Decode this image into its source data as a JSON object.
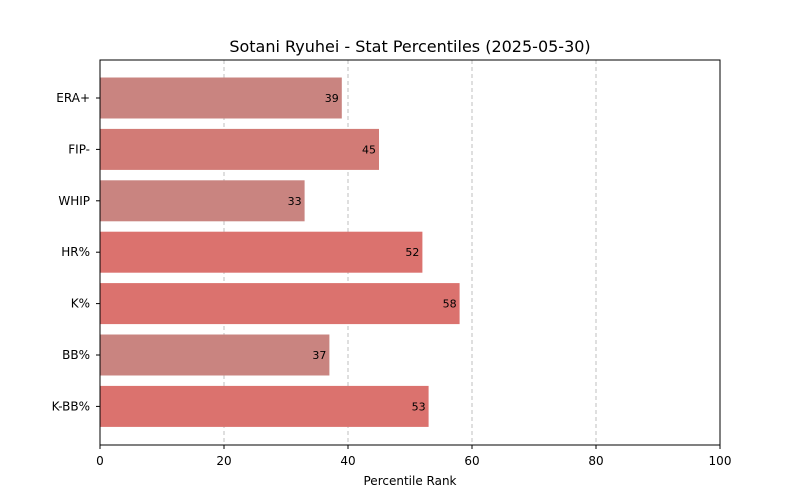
{
  "chart_data": {
    "type": "bar",
    "orientation": "horizontal",
    "title": "Sotani Ryuhei - Stat Percentiles (2025-05-30)",
    "xlabel": "Percentile Rank",
    "ylabel": "",
    "xlim": [
      0,
      100
    ],
    "xticks": [
      0,
      20,
      40,
      60,
      80,
      100
    ],
    "grid": "x-dashed",
    "categories": [
      "ERA+",
      "FIP-",
      "WHIP",
      "HR%",
      "K%",
      "BB%",
      "K-BB%"
    ],
    "values": [
      39,
      45,
      33,
      52,
      58,
      37,
      53
    ],
    "colors": [
      "#c98480",
      "#d27b76",
      "#c98480",
      "#db726e",
      "#db726e",
      "#c98480",
      "#db726e"
    ]
  }
}
